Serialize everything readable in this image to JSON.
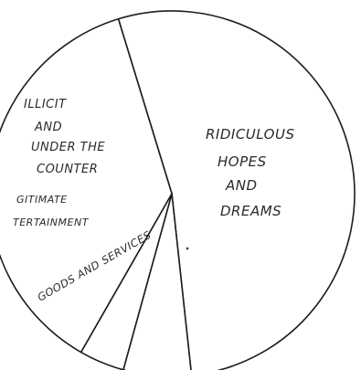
{
  "chart_data": {
    "type": "pie",
    "title": "",
    "slices": [
      {
        "label": "RIDICULOUS HOPES AND DREAMS",
        "lines": [
          "RIDICULOUS",
          "HOPES",
          "AND",
          "DREAMS"
        ],
        "value": 53
      },
      {
        "label": "GOODS AND SERVICES",
        "lines": [
          "GOODS AND SERVICES"
        ],
        "value": 6
      },
      {
        "label": "LEGITIMATE ENTERTAINMENT",
        "lines": [
          "GITIMATE",
          "TERTAINMENT"
        ],
        "value": 4
      },
      {
        "label": "ILLICIT AND UNDER THE COUNTER",
        "lines": [
          "ILLICIT",
          "AND",
          "UNDER THE",
          "COUNTER"
        ],
        "value": 37
      }
    ],
    "legend": "none",
    "colors": {
      "ink": "#1c1c1c",
      "background": "#ffffff"
    }
  }
}
